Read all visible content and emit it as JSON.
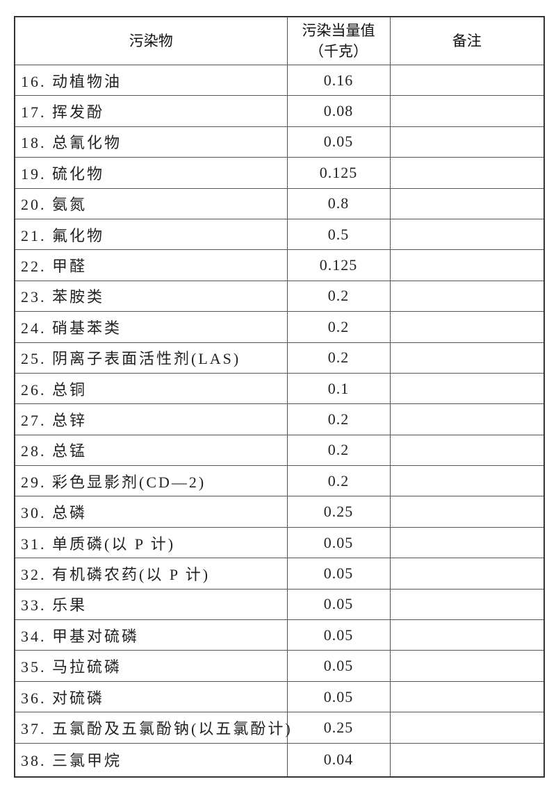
{
  "headers": {
    "pollutant": "污染物",
    "equivalent_line1": "污染当量值",
    "equivalent_line2": "（千克）",
    "remarks": "备注"
  },
  "rows": [
    {
      "name": "16. 动植物油",
      "value": "0.16"
    },
    {
      "name": "17. 挥发酚",
      "value": "0.08"
    },
    {
      "name": "18. 总氰化物",
      "value": "0.05"
    },
    {
      "name": "19. 硫化物",
      "value": "0.125"
    },
    {
      "name": "20. 氨氮",
      "value": "0.8"
    },
    {
      "name": "21. 氟化物",
      "value": "0.5"
    },
    {
      "name": "22. 甲醛",
      "value": "0.125"
    },
    {
      "name": "23. 苯胺类",
      "value": "0.2"
    },
    {
      "name": "24. 硝基苯类",
      "value": "0.2"
    },
    {
      "name": "25. 阴离子表面活性剂(LAS)",
      "value": "0.2"
    },
    {
      "name": "26. 总铜",
      "value": "0.1"
    },
    {
      "name": "27. 总锌",
      "value": "0.2"
    },
    {
      "name": "28. 总锰",
      "value": "0.2"
    },
    {
      "name": "29. 彩色显影剂(CD—2)",
      "value": "0.2"
    },
    {
      "name": "30. 总磷",
      "value": "0.25"
    },
    {
      "name": "31. 单质磷(以 P 计)",
      "value": "0.05"
    },
    {
      "name": "32. 有机磷农药(以 P 计)",
      "value": "0.05"
    },
    {
      "name": "33. 乐果",
      "value": "0.05"
    },
    {
      "name": "34. 甲基对硫磷",
      "value": "0.05"
    },
    {
      "name": "35. 马拉硫磷",
      "value": "0.05"
    },
    {
      "name": "36. 对硫磷",
      "value": "0.05"
    },
    {
      "name": "37. 五氯酚及五氯酚钠(以五氯酚计)",
      "value": "0.25"
    },
    {
      "name": "38. 三氯甲烷",
      "value": "0.04"
    }
  ]
}
